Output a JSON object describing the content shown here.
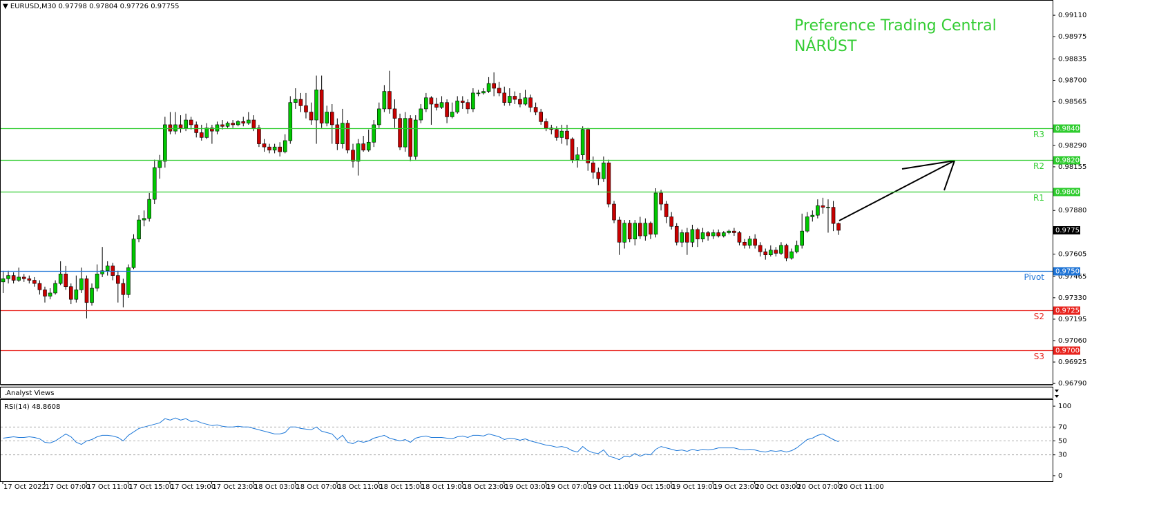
{
  "chart_data": {
    "type": "candlestick",
    "symbol": "EURUSD,M30",
    "annotation": [
      "Preference Trading Central",
      "NÁRŮST"
    ],
    "panel_label": ".Analyst Views",
    "up_color": "#00c800",
    "down_color": "#c80000",
    "candles": [
      [
        0.9743,
        0.975,
        0.9736,
        0.9745
      ],
      [
        0.9745,
        0.975,
        0.9742,
        0.9747
      ],
      [
        0.9747,
        0.9749,
        0.9742,
        0.9744
      ],
      [
        0.9744,
        0.9752,
        0.9743,
        0.9746
      ],
      [
        0.9746,
        0.9748,
        0.9743,
        0.9745
      ],
      [
        0.9745,
        0.9747,
        0.9742,
        0.9744
      ],
      [
        0.9744,
        0.9746,
        0.974,
        0.9742
      ],
      [
        0.9742,
        0.9744,
        0.9735,
        0.9738
      ],
      [
        0.9738,
        0.974,
        0.973,
        0.9734
      ],
      [
        0.9734,
        0.9739,
        0.9732,
        0.9736
      ],
      [
        0.9736,
        0.9744,
        0.9735,
        0.9742
      ],
      [
        0.9742,
        0.9756,
        0.9741,
        0.9748
      ],
      [
        0.9748,
        0.9753,
        0.9738,
        0.974
      ],
      [
        0.974,
        0.9742,
        0.9729,
        0.9732
      ],
      [
        0.9732,
        0.9747,
        0.973,
        0.9738
      ],
      [
        0.9738,
        0.9752,
        0.9736,
        0.9745
      ],
      [
        0.9745,
        0.9747,
        0.972,
        0.973
      ],
      [
        0.973,
        0.9742,
        0.9728,
        0.9739
      ],
      [
        0.9739,
        0.9754,
        0.9737,
        0.9748
      ],
      [
        0.9748,
        0.9765,
        0.9746,
        0.975
      ],
      [
        0.975,
        0.9756,
        0.9747,
        0.9753
      ],
      [
        0.9753,
        0.9755,
        0.9744,
        0.9747
      ],
      [
        0.9747,
        0.975,
        0.973,
        0.9742
      ],
      [
        0.9742,
        0.9745,
        0.9727,
        0.9735
      ],
      [
        0.9735,
        0.9754,
        0.9733,
        0.9752
      ],
      [
        0.9752,
        0.9773,
        0.9751,
        0.977
      ],
      [
        0.977,
        0.9785,
        0.9768,
        0.9782
      ],
      [
        0.9782,
        0.9788,
        0.9778,
        0.9783
      ],
      [
        0.9783,
        0.9799,
        0.9781,
        0.9795
      ],
      [
        0.9795,
        0.982,
        0.9792,
        0.9815
      ],
      [
        0.9815,
        0.9823,
        0.9808,
        0.9819
      ],
      [
        0.9819,
        0.9847,
        0.9815,
        0.9842
      ],
      [
        0.9842,
        0.985,
        0.9836,
        0.9838
      ],
      [
        0.9838,
        0.985,
        0.9836,
        0.9842
      ],
      [
        0.9842,
        0.9848,
        0.9837,
        0.984
      ],
      [
        0.984,
        0.9849,
        0.9838,
        0.9845
      ],
      [
        0.9845,
        0.9847,
        0.9839,
        0.9842
      ],
      [
        0.9842,
        0.9844,
        0.9834,
        0.9837
      ],
      [
        0.9837,
        0.9842,
        0.9832,
        0.9834
      ],
      [
        0.9834,
        0.9843,
        0.9833,
        0.984
      ],
      [
        0.984,
        0.9842,
        0.983,
        0.9838
      ],
      [
        0.9838,
        0.9844,
        0.9836,
        0.9842
      ],
      [
        0.9842,
        0.9845,
        0.9839,
        0.9841
      ],
      [
        0.9841,
        0.9844,
        0.984,
        0.9843
      ],
      [
        0.9843,
        0.9845,
        0.984,
        0.9842
      ],
      [
        0.9842,
        0.9845,
        0.9841,
        0.9844
      ],
      [
        0.9844,
        0.9847,
        0.9841,
        0.9843
      ],
      [
        0.9843,
        0.985,
        0.9842,
        0.9845
      ],
      [
        0.9845,
        0.9848,
        0.9838,
        0.984
      ],
      [
        0.984,
        0.9842,
        0.9828,
        0.983
      ],
      [
        0.983,
        0.9833,
        0.9825,
        0.9828
      ],
      [
        0.9828,
        0.983,
        0.9824,
        0.9826
      ],
      [
        0.9826,
        0.983,
        0.9824,
        0.9828
      ],
      [
        0.9828,
        0.9831,
        0.9822,
        0.9825
      ],
      [
        0.9825,
        0.9836,
        0.9824,
        0.9832
      ],
      [
        0.9832,
        0.986,
        0.983,
        0.9856
      ],
      [
        0.9856,
        0.9865,
        0.9852,
        0.9858
      ],
      [
        0.9858,
        0.9862,
        0.985,
        0.9854
      ],
      [
        0.9854,
        0.9862,
        0.9846,
        0.985
      ],
      [
        0.985,
        0.9856,
        0.9842,
        0.9845
      ],
      [
        0.9845,
        0.9873,
        0.983,
        0.9864
      ],
      [
        0.9864,
        0.9873,
        0.984,
        0.9843
      ],
      [
        0.9843,
        0.9854,
        0.9841,
        0.985
      ],
      [
        0.985,
        0.9855,
        0.983,
        0.9842
      ],
      [
        0.9842,
        0.9846,
        0.9826,
        0.983
      ],
      [
        0.983,
        0.9852,
        0.9827,
        0.9843
      ],
      [
        0.9843,
        0.9845,
        0.9824,
        0.9826
      ],
      [
        0.9826,
        0.983,
        0.9815,
        0.9819
      ],
      [
        0.9819,
        0.9833,
        0.981,
        0.983
      ],
      [
        0.983,
        0.9835,
        0.9825,
        0.9826
      ],
      [
        0.9826,
        0.9839,
        0.9825,
        0.9831
      ],
      [
        0.9831,
        0.9845,
        0.9828,
        0.9842
      ],
      [
        0.9842,
        0.9856,
        0.984,
        0.9852
      ],
      [
        0.9852,
        0.9867,
        0.985,
        0.9863
      ],
      [
        0.9863,
        0.9876,
        0.9849,
        0.9852
      ],
      [
        0.9852,
        0.9858,
        0.984,
        0.9846
      ],
      [
        0.9846,
        0.9849,
        0.9826,
        0.9828
      ],
      [
        0.9828,
        0.985,
        0.9825,
        0.9846
      ],
      [
        0.9846,
        0.9848,
        0.9819,
        0.9822
      ],
      [
        0.9822,
        0.9848,
        0.982,
        0.9845
      ],
      [
        0.9845,
        0.9855,
        0.9843,
        0.9852
      ],
      [
        0.9852,
        0.9862,
        0.985,
        0.9859
      ],
      [
        0.9859,
        0.986,
        0.9842,
        0.9855
      ],
      [
        0.9855,
        0.9859,
        0.9851,
        0.9853
      ],
      [
        0.9853,
        0.986,
        0.9852,
        0.9856
      ],
      [
        0.9856,
        0.9858,
        0.9843,
        0.9847
      ],
      [
        0.9847,
        0.9856,
        0.9846,
        0.985
      ],
      [
        0.985,
        0.986,
        0.9849,
        0.9857
      ],
      [
        0.9857,
        0.986,
        0.9852,
        0.9856
      ],
      [
        0.9856,
        0.9858,
        0.9849,
        0.9852
      ],
      [
        0.9852,
        0.9865,
        0.985,
        0.9862
      ],
      [
        0.9862,
        0.9864,
        0.986,
        0.9862
      ],
      [
        0.9862,
        0.9865,
        0.9861,
        0.9863
      ],
      [
        0.9863,
        0.9872,
        0.9862,
        0.9868
      ],
      [
        0.9868,
        0.9875,
        0.986,
        0.9865
      ],
      [
        0.9865,
        0.9869,
        0.986,
        0.9862
      ],
      [
        0.9862,
        0.9866,
        0.9854,
        0.9856
      ],
      [
        0.9856,
        0.9865,
        0.9854,
        0.986
      ],
      [
        0.986,
        0.9863,
        0.9855,
        0.9858
      ],
      [
        0.9858,
        0.9862,
        0.9853,
        0.9855
      ],
      [
        0.9855,
        0.9864,
        0.9854,
        0.9859
      ],
      [
        0.9859,
        0.9861,
        0.985,
        0.9853
      ],
      [
        0.9853,
        0.9856,
        0.9848,
        0.985
      ],
      [
        0.985,
        0.9852,
        0.9842,
        0.9844
      ],
      [
        0.9844,
        0.9846,
        0.9838,
        0.984
      ],
      [
        0.984,
        0.9842,
        0.9836,
        0.9839
      ],
      [
        0.9839,
        0.9841,
        0.9832,
        0.9834
      ],
      [
        0.9834,
        0.9842,
        0.983,
        0.9838
      ],
      [
        0.9838,
        0.9842,
        0.9829,
        0.9833
      ],
      [
        0.9833,
        0.9834,
        0.9818,
        0.982
      ],
      [
        0.982,
        0.9828,
        0.9815,
        0.9823
      ],
      [
        0.9823,
        0.9841,
        0.982,
        0.9839
      ],
      [
        0.9839,
        0.984,
        0.9813,
        0.9818
      ],
      [
        0.9818,
        0.9822,
        0.9808,
        0.9812
      ],
      [
        0.9812,
        0.9815,
        0.9804,
        0.9808
      ],
      [
        0.9808,
        0.9822,
        0.9806,
        0.9818
      ],
      [
        0.9818,
        0.982,
        0.979,
        0.9792
      ],
      [
        0.9792,
        0.9794,
        0.978,
        0.9782
      ],
      [
        0.9782,
        0.9784,
        0.976,
        0.9768
      ],
      [
        0.9768,
        0.9782,
        0.9764,
        0.978
      ],
      [
        0.978,
        0.9782,
        0.9768,
        0.977
      ],
      [
        0.977,
        0.9782,
        0.9766,
        0.978
      ],
      [
        0.978,
        0.9784,
        0.977,
        0.9772
      ],
      [
        0.9772,
        0.9783,
        0.9769,
        0.978
      ],
      [
        0.978,
        0.9781,
        0.977,
        0.9773
      ],
      [
        0.9773,
        0.9802,
        0.9771,
        0.9799
      ],
      [
        0.9799,
        0.9801,
        0.9788,
        0.9792
      ],
      [
        0.9792,
        0.9794,
        0.978,
        0.9784
      ],
      [
        0.9784,
        0.9787,
        0.9776,
        0.9778
      ],
      [
        0.9778,
        0.978,
        0.9766,
        0.9768
      ],
      [
        0.9768,
        0.9776,
        0.9765,
        0.9774
      ],
      [
        0.9774,
        0.9777,
        0.976,
        0.9768
      ],
      [
        0.9768,
        0.9779,
        0.9765,
        0.9776
      ],
      [
        0.9776,
        0.9777,
        0.9765,
        0.977
      ],
      [
        0.977,
        0.9777,
        0.9768,
        0.9774
      ],
      [
        0.9774,
        0.9775,
        0.9769,
        0.9772
      ],
      [
        0.9772,
        0.9776,
        0.977,
        0.9774
      ],
      [
        0.9774,
        0.9776,
        0.9771,
        0.9772
      ],
      [
        0.9772,
        0.9775,
        0.9771,
        0.9774
      ],
      [
        0.9774,
        0.9776,
        0.9773,
        0.9775
      ],
      [
        0.9775,
        0.9777,
        0.9772,
        0.9774
      ],
      [
        0.9774,
        0.9775,
        0.9766,
        0.9768
      ],
      [
        0.9768,
        0.977,
        0.9764,
        0.9766
      ],
      [
        0.9766,
        0.9772,
        0.9764,
        0.977
      ],
      [
        0.977,
        0.9773,
        0.9764,
        0.9766
      ],
      [
        0.9766,
        0.9768,
        0.9759,
        0.9762
      ],
      [
        0.9762,
        0.9764,
        0.9757,
        0.976
      ],
      [
        0.976,
        0.9766,
        0.9759,
        0.9763
      ],
      [
        0.9763,
        0.9765,
        0.9759,
        0.9761
      ],
      [
        0.9761,
        0.9768,
        0.976,
        0.9766
      ],
      [
        0.9766,
        0.9767,
        0.9756,
        0.9758
      ],
      [
        0.9758,
        0.9764,
        0.9757,
        0.9762
      ],
      [
        0.9762,
        0.9769,
        0.9761,
        0.9766
      ],
      [
        0.9766,
        0.9786,
        0.9764,
        0.9775
      ],
      [
        0.9775,
        0.9787,
        0.9774,
        0.9784
      ],
      [
        0.9784,
        0.9788,
        0.9781,
        0.9785
      ],
      [
        0.9785,
        0.9795,
        0.9783,
        0.9791
      ],
      [
        0.9791,
        0.9796,
        0.9786,
        0.979
      ],
      [
        0.979,
        0.9795,
        0.9774,
        0.979
      ],
      [
        0.979,
        0.9794,
        0.9775,
        0.97798
      ],
      [
        0.97798,
        0.97804,
        0.97726,
        0.97755
      ]
    ],
    "ylim": [
      0.96782,
      0.99206
    ],
    "yticks": [
      {
        "value": 0.9911,
        "label": "0.99110"
      },
      {
        "value": 0.98975,
        "label": "0.98975"
      },
      {
        "value": 0.98835,
        "label": "0.98835"
      },
      {
        "value": 0.987,
        "label": "0.98700"
      },
      {
        "value": 0.98565,
        "label": "0.98565"
      },
      {
        "value": 0.9829,
        "label": "0.98290"
      },
      {
        "value": 0.98155,
        "label": "0.98155"
      },
      {
        "value": 0.9788,
        "label": "0.97880"
      },
      {
        "value": 0.97605,
        "label": "0.97605"
      },
      {
        "value": 0.97465,
        "label": "0.97465"
      },
      {
        "value": 0.9733,
        "label": "0.97330"
      },
      {
        "value": 0.97195,
        "label": "0.97195"
      },
      {
        "value": 0.9706,
        "label": "0.97060"
      },
      {
        "value": 0.96925,
        "label": "0.96925"
      },
      {
        "value": 0.9679,
        "label": "0.96790"
      }
    ],
    "levels": [
      {
        "name": "R3",
        "value": 0.984,
        "label": "0.98400",
        "color": "#2fcc2f"
      },
      {
        "name": "R2",
        "value": 0.982,
        "label": "0.98200",
        "color": "#2fcc2f"
      },
      {
        "name": "R1",
        "value": 0.98,
        "label": "0.98000",
        "color": "#2fcc2f"
      },
      {
        "name": "Pivot",
        "value": 0.975,
        "label": "0.97500",
        "color": "#1f74d6"
      },
      {
        "name": "S2",
        "value": 0.9725,
        "label": "0.97250",
        "color": "#e8231d"
      },
      {
        "name": "S3",
        "value": 0.97,
        "label": "0.97000",
        "color": "#e8231d"
      }
    ],
    "time_labels": [
      "17 Oct 2022",
      "17 Oct 07:00",
      "17 Oct 11:00",
      "17 Oct 15:00",
      "17 Oct 19:00",
      "17 Oct 23:00",
      "18 Oct 03:00",
      "18 Oct 07:00",
      "18 Oct 11:00",
      "18 Oct 15:00",
      "18 Oct 19:00",
      "18 Oct 23:00",
      "19 Oct 03:00",
      "19 Oct 07:00",
      "19 Oct 11:00",
      "19 Oct 15:00",
      "19 Oct 19:00",
      "19 Oct 23:00",
      "20 Oct 03:00",
      "20 Oct 07:00",
      "20 Oct 11:00"
    ],
    "rsi": {
      "name": "RSI(14)",
      "color": "#1e78d8",
      "ylim": [
        -8,
        110
      ],
      "yticks": [
        0,
        30,
        50,
        70,
        100
      ],
      "values": [
        54,
        55,
        56,
        55,
        55,
        56,
        55,
        53,
        48,
        47,
        50,
        55,
        60,
        56,
        48,
        45,
        50,
        52,
        56,
        58,
        58,
        57,
        55,
        50,
        58,
        63,
        68,
        70,
        72,
        74,
        76,
        82,
        80,
        83,
        80,
        82,
        78,
        79,
        76,
        74,
        72,
        73,
        71,
        70,
        70,
        71,
        70,
        70,
        68,
        66,
        64,
        62,
        60,
        60,
        62,
        70,
        70,
        68,
        67,
        66,
        70,
        64,
        62,
        60,
        52,
        58,
        48,
        46,
        50,
        48,
        50,
        54,
        56,
        58,
        54,
        52,
        50,
        52,
        48,
        54,
        56,
        57,
        55,
        55,
        55,
        54,
        53,
        56,
        57,
        55,
        58,
        58,
        57,
        60,
        58,
        56,
        52,
        54,
        53,
        51,
        53,
        50,
        48,
        46,
        44,
        43,
        41,
        42,
        40,
        36,
        34,
        42,
        36,
        33,
        32,
        37,
        28,
        26,
        23,
        28,
        27,
        32,
        28,
        31,
        30,
        38,
        42,
        40,
        38,
        36,
        37,
        35,
        38,
        36,
        38,
        37,
        38,
        40,
        40,
        40,
        40,
        38,
        37,
        38,
        37,
        35,
        34,
        36,
        35,
        36,
        34,
        36,
        40,
        46,
        52,
        54,
        58,
        60,
        56,
        52,
        48.8608
      ]
    }
  }
}
